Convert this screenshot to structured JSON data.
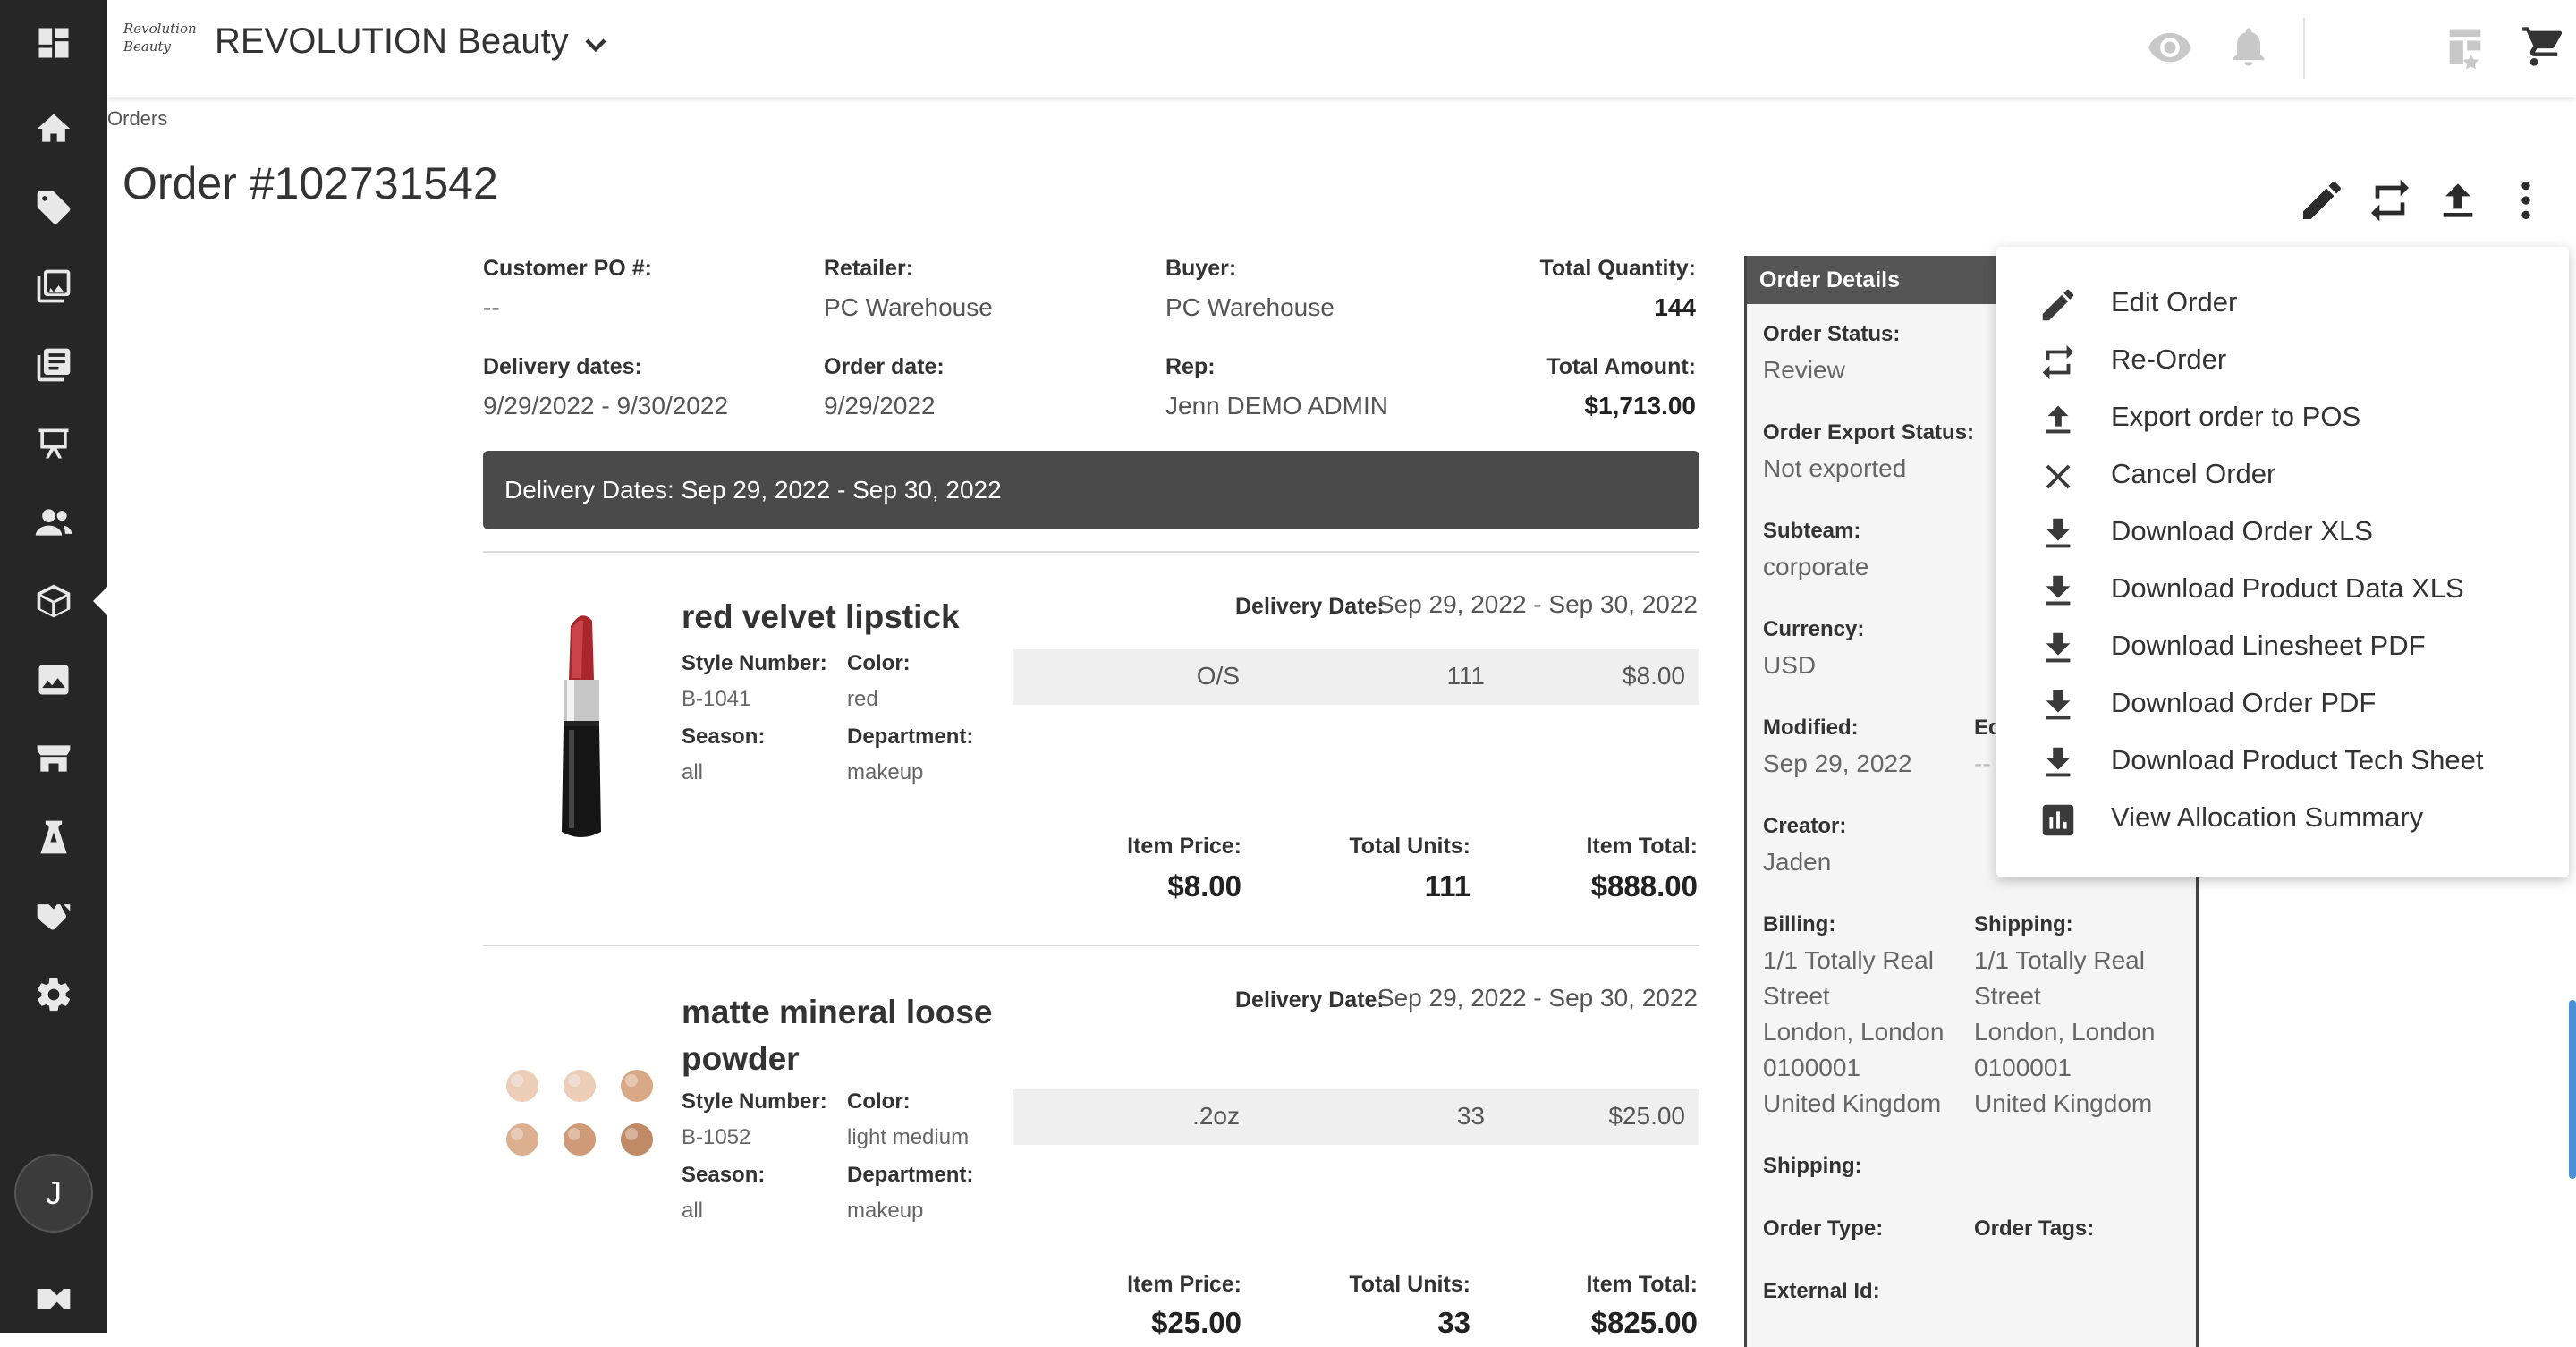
{
  "app": {
    "brand_logo_text": "Revolution Beauty",
    "brand_name": "REVOLUTION Beauty"
  },
  "sidebar": {
    "items": [
      "dashboard-icon",
      "home-icon",
      "tag-icon",
      "catalog-icon",
      "linesheet-icon",
      "presentation-icon",
      "customers-icon",
      "orders-icon",
      "media-icon",
      "storefront-icon",
      "lookbook-icon",
      "partners-icon",
      "settings-icon"
    ],
    "avatar_initial": "J"
  },
  "breadcrumb": "Orders",
  "page_title": "Order #102731542",
  "summary": {
    "customer_po_label": "Customer PO #:",
    "customer_po": "--",
    "retailer_label": "Retailer:",
    "retailer": "PC Warehouse",
    "buyer_label": "Buyer:",
    "buyer": "PC Warehouse",
    "total_quantity_label": "Total Quantity:",
    "total_quantity": "144",
    "delivery_dates_label": "Delivery dates:",
    "delivery_dates": "9/29/2022 - 9/30/2022",
    "order_date_label": "Order date:",
    "order_date": "9/29/2022",
    "rep_label": "Rep:",
    "rep": "Jenn DEMO ADMIN",
    "total_amount_label": "Total Amount:",
    "total_amount": "$1,713.00"
  },
  "delivery_banner": "Delivery Dates: Sep 29, 2022 - Sep 30, 2022",
  "products": [
    {
      "name": "red velvet lipstick",
      "style_label": "Style Number:",
      "style": "B-1041",
      "color_label": "Color:",
      "color": "red",
      "season_label": "Season:",
      "season": "all",
      "department_label": "Department:",
      "department": "makeup",
      "delivery_label": "Delivery Date:",
      "delivery": "Sep 29, 2022 - Sep 30, 2022",
      "size": "O/S",
      "qty": "111",
      "price": "$8.00",
      "item_price_label": "Item Price:",
      "item_price": "$8.00",
      "total_units_label": "Total Units:",
      "total_units": "111",
      "item_total_label": "Item Total:",
      "item_total": "$888.00"
    },
    {
      "name": "matte mineral loose powder",
      "style_label": "Style Number:",
      "style": "B-1052",
      "color_label": "Color:",
      "color": "light medium",
      "season_label": "Season:",
      "season": "all",
      "department_label": "Department:",
      "department": "makeup",
      "delivery_label": "Delivery Date:",
      "delivery": "Sep 29, 2022 - Sep 30, 2022",
      "size": ".2oz",
      "qty": "33",
      "price": "$25.00",
      "item_price_label": "Item Price:",
      "item_price": "$25.00",
      "total_units_label": "Total Units:",
      "total_units": "33",
      "item_total_label": "Item Total:",
      "item_total": "$825.00"
    }
  ],
  "order_details": {
    "header": "Order Details",
    "status_label": "Order Status:",
    "status": "Review",
    "export_label": "Order Export Status:",
    "export": "Not exported",
    "subteam_label": "Subteam:",
    "subteam": "corporate",
    "currency_label": "Currency:",
    "currency": "USD",
    "modified_label": "Modified:",
    "modified": "Sep 29, 2022",
    "edited_label_partial": "Ed",
    "edited_value_partial": "--",
    "creator_label": "Creator:",
    "creator": "Jaden",
    "billing_label": "Billing:",
    "billing_lines": [
      "1/1 Totally Real",
      "Street",
      "London, London",
      "0100001",
      "United Kingdom"
    ],
    "shipping_addr_label": "Shipping:",
    "shipping_lines": [
      "1/1 Totally Real",
      "Street",
      "London, London",
      "0100001",
      "United Kingdom"
    ],
    "shipping_label": "Shipping:",
    "order_type_label": "Order Type:",
    "order_tags_label": "Order Tags:",
    "external_id_label": "External Id:"
  },
  "menu": {
    "items": [
      {
        "label": "Edit Order",
        "icon": "pencil-icon"
      },
      {
        "label": "Re-Order",
        "icon": "reorder-icon"
      },
      {
        "label": "Export order to POS",
        "icon": "upload-icon"
      },
      {
        "label": "Cancel Order",
        "icon": "close-icon"
      },
      {
        "label": "Download Order XLS",
        "icon": "download-icon"
      },
      {
        "label": "Download Product Data XLS",
        "icon": "download-icon"
      },
      {
        "label": "Download Linesheet PDF",
        "icon": "download-icon"
      },
      {
        "label": "Download Order PDF",
        "icon": "download-icon"
      },
      {
        "label": "Download Product Tech Sheet",
        "icon": "download-icon"
      },
      {
        "label": "View Allocation Summary",
        "icon": "bar-chart-icon"
      }
    ]
  }
}
